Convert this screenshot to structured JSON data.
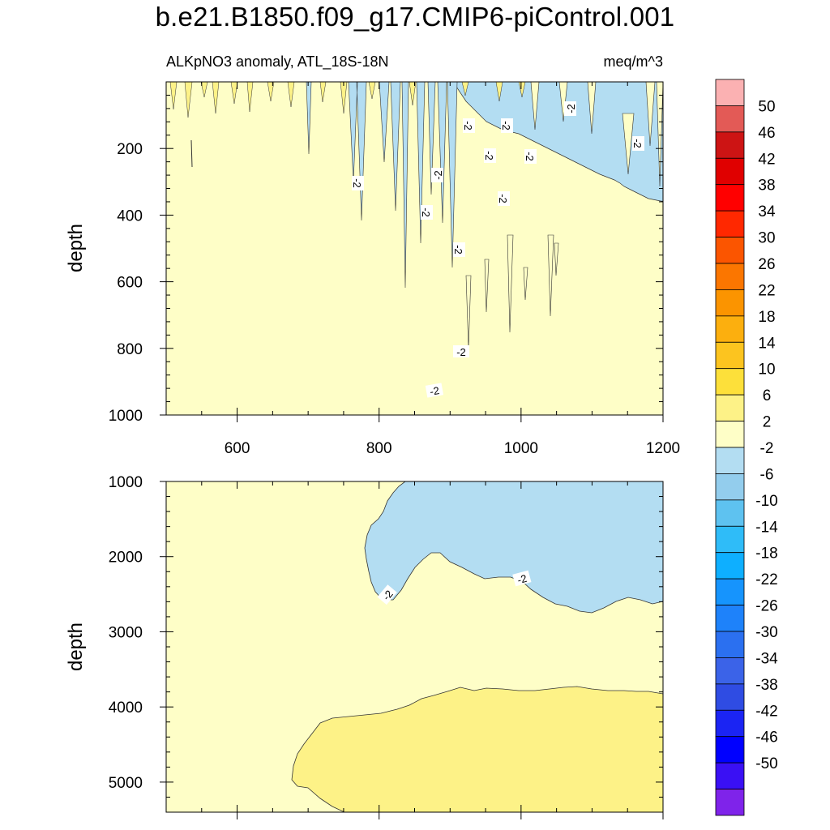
{
  "title": "b.e21.B1850.f09_g17.CMIP6-piControl.001",
  "subtitle_left": "ALKpNO3 anomaly, ATL_18S-18N",
  "subtitle_right": "meq/m^3",
  "chart_data": [
    {
      "type": "contour",
      "panel": "top",
      "title": "ALKpNO3 anomaly, ATL_18S-18N",
      "units": "meq/m^3",
      "xlabel": "",
      "ylabel": "depth",
      "xlim": [
        500,
        1200
      ],
      "ylim": [
        1000,
        0
      ],
      "x_ticks": [
        600,
        800,
        1000,
        1200
      ],
      "y_ticks": [
        200,
        400,
        600,
        800,
        1000
      ],
      "regions": [
        {
          "level_range": [
            -2,
            2
          ],
          "description": "most of panel (western and deep west)"
        },
        {
          "level_range": [
            -6,
            -2
          ],
          "description": "east of ~x 850-930, below ~100 m"
        },
        {
          "level_range": [
            2,
            6
          ],
          "description": "thin streaks near surface (0-100 m)"
        }
      ],
      "contour_labels": [
        "-2",
        "-2",
        "-2",
        "-2",
        "-2",
        "-2",
        "-2",
        "-2",
        "-2",
        "-2",
        "-2",
        "-2",
        "-2"
      ]
    },
    {
      "type": "contour",
      "panel": "bottom",
      "xlabel": "",
      "ylabel": "depth",
      "xlim": [
        500,
        1200
      ],
      "ylim": [
        5400,
        1000
      ],
      "x_ticks": [
        600,
        800,
        1000,
        1200
      ],
      "y_ticks": [
        1000,
        2000,
        3000,
        4000,
        5000
      ],
      "regions": [
        {
          "level_range": [
            -2,
            2
          ],
          "description": "background"
        },
        {
          "level_range": [
            -6,
            -2
          ],
          "description": "upper-east lobe, 1000-2700 m"
        },
        {
          "level_range": [
            2,
            6
          ],
          "description": "deep layer, 3700-5400 m, x > ~680"
        }
      ],
      "contour_labels": [
        "-2",
        "-2"
      ]
    }
  ],
  "colorbar": {
    "labels": [
      "50",
      "46",
      "42",
      "38",
      "34",
      "30",
      "26",
      "22",
      "18",
      "14",
      "10",
      "6",
      "2",
      "-2",
      "-6",
      "-10",
      "-14",
      "-18",
      "-22",
      "-26",
      "-30",
      "-34",
      "-38",
      "-42",
      "-46",
      "-50"
    ],
    "colors": [
      "#fbb1b2",
      "#e35a56",
      "#cd1414",
      "#e00000",
      "#ff0000",
      "#ff2800",
      "#fb5500",
      "#fb7600",
      "#fb9400",
      "#fcaf0e",
      "#fcc41f",
      "#fde03a",
      "#fdf287",
      "#fefec7",
      "#b3ddf2",
      "#93cded",
      "#5ec2f0",
      "#2fbcf8",
      "#0eafff",
      "#1694fd",
      "#1e82fa",
      "#2b70f0",
      "#3b63e8",
      "#2f4ce3",
      "#1b24f3",
      "#0000ff",
      "#3a10f4",
      "#7f23ea"
    ]
  },
  "fills": {
    "pale_yellow": "#fefec7",
    "yellow": "#fdf287",
    "light_blue": "#b3ddf2"
  }
}
